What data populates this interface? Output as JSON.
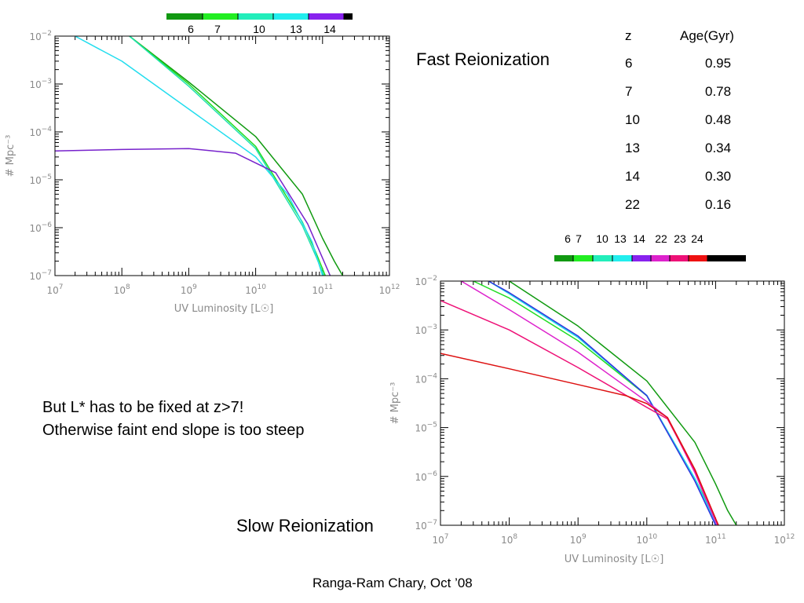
{
  "labels": {
    "fast": "Fast Reionization",
    "slow": "Slow Reionization",
    "note_line1": "But L* has to be fixed at z>7!",
    "note_line2": "Otherwise faint end slope is too steep",
    "credit": "Ranga-Ram Chary, Oct ’08"
  },
  "table": {
    "headers": [
      "z",
      "Age(Gyr)"
    ],
    "rows": [
      [
        "6",
        "0.95"
      ],
      [
        "7",
        "0.78"
      ],
      [
        "10",
        "0.48"
      ],
      [
        "13",
        "0.34"
      ],
      [
        "14",
        "0.30"
      ],
      [
        "22",
        "0.16"
      ]
    ]
  },
  "chart_data": [
    {
      "type": "line",
      "id": "fast",
      "xlabel": "UV Luminosity [L☉]",
      "ylabel": "# Mpc⁻³",
      "x_scale": "log",
      "y_scale": "log",
      "xlim": [
        10000000.0,
        1000000000000.0
      ],
      "ylim": [
        1e-07,
        0.01
      ],
      "x_ticks": [
        {
          "value": 10000000.0,
          "base": "10",
          "exp": "7"
        },
        {
          "value": 100000000.0,
          "base": "10",
          "exp": "8"
        },
        {
          "value": 1000000000.0,
          "base": "10",
          "exp": "9"
        },
        {
          "value": 10000000000.0,
          "base": "10",
          "exp": "10"
        },
        {
          "value": 100000000000.0,
          "base": "10",
          "exp": "11"
        },
        {
          "value": 1000000000000.0,
          "base": "10",
          "exp": "12"
        }
      ],
      "y_ticks": [
        {
          "value": 1e-07,
          "base": "10",
          "exp": "−7"
        },
        {
          "value": 1e-06,
          "base": "10",
          "exp": "−6"
        },
        {
          "value": 1e-05,
          "base": "10",
          "exp": "−5"
        },
        {
          "value": 0.0001,
          "base": "10",
          "exp": "−4"
        },
        {
          "value": 0.001,
          "base": "10",
          "exp": "−3"
        },
        {
          "value": 0.01,
          "base": "10",
          "exp": "−2"
        }
      ],
      "colorbar": {
        "colors": [
          "#119911",
          "#22ee22",
          "#22eebb",
          "#22eeee",
          "#8822ee",
          "#000000"
        ],
        "labels": [
          "6",
          "7",
          "10",
          "13",
          "14"
        ]
      },
      "series": [
        {
          "color": "#109a10",
          "x": [
            130000000.0,
            1000000000.0,
            10000000000.0,
            50000000000.0,
            100000000000.0,
            150000000000.0,
            200000000000.0
          ],
          "y": [
            0.01,
            0.0011,
            8e-05,
            5e-06,
            6e-07,
            2e-07,
            1e-07
          ]
        },
        {
          "color": "#22dd22",
          "x": [
            130000000.0,
            1000000000.0,
            10000000000.0,
            50000000000.0,
            80000000000.0,
            110000000000.0
          ],
          "y": [
            0.01,
            0.001,
            5e-05,
            1.3e-06,
            3e-07,
            1e-07
          ]
        },
        {
          "color": "#22e0b0",
          "x": [
            130000000.0,
            1000000000.0,
            10000000000.0,
            50000000000.0,
            80000000000.0,
            105000000000.0
          ],
          "y": [
            0.01,
            0.0009,
            4.5e-05,
            1.1e-06,
            2.5e-07,
            1e-07
          ]
        },
        {
          "color": "#22ddee",
          "x": [
            20000000.0,
            100000000.0,
            1000000000.0,
            10000000000.0,
            30000000000.0,
            70000000000.0,
            100000000000.0
          ],
          "y": [
            0.01,
            0.003,
            0.0003,
            3e-05,
            5e-06,
            5e-07,
            1e-07
          ]
        },
        {
          "color": "#7722cc",
          "x": [
            10000000.0,
            100000000.0,
            1000000000.0,
            5000000000.0,
            20000000000.0,
            60000000000.0,
            130000000000.0
          ],
          "y": [
            4e-05,
            4.3e-05,
            4.5e-05,
            3.6e-05,
            1.4e-05,
            1.2e-06,
            1e-07
          ]
        }
      ]
    },
    {
      "type": "line",
      "id": "slow",
      "xlabel": "UV Luminosity [L☉]",
      "ylabel": "# Mpc⁻³",
      "x_scale": "log",
      "y_scale": "log",
      "xlim": [
        10000000.0,
        1000000000000.0
      ],
      "ylim": [
        1e-07,
        0.01
      ],
      "x_ticks": [
        {
          "value": 10000000.0,
          "base": "10",
          "exp": "7"
        },
        {
          "value": 100000000.0,
          "base": "10",
          "exp": "8"
        },
        {
          "value": 1000000000.0,
          "base": "10",
          "exp": "9"
        },
        {
          "value": 10000000000.0,
          "base": "10",
          "exp": "10"
        },
        {
          "value": 100000000000.0,
          "base": "10",
          "exp": "11"
        },
        {
          "value": 1000000000000.0,
          "base": "10",
          "exp": "12"
        }
      ],
      "y_ticks": [
        {
          "value": 1e-07,
          "base": "10",
          "exp": "−7"
        },
        {
          "value": 1e-06,
          "base": "10",
          "exp": "−6"
        },
        {
          "value": 1e-05,
          "base": "10",
          "exp": "−5"
        },
        {
          "value": 0.0001,
          "base": "10",
          "exp": "−4"
        },
        {
          "value": 0.001,
          "base": "10",
          "exp": "−3"
        },
        {
          "value": 0.01,
          "base": "10",
          "exp": "−2"
        }
      ],
      "colorbar": {
        "colors": [
          "#119911",
          "#22ee22",
          "#22eebb",
          "#22eeee",
          "#8822ee",
          "#dd22cc",
          "#ee1177",
          "#ee1111",
          "#000000"
        ],
        "labels": [
          "6",
          "7",
          "10",
          "13",
          "14",
          "22",
          "23",
          "24"
        ]
      },
      "series": [
        {
          "color": "#109a10",
          "x": [
            100000000.0,
            1000000000.0,
            10000000000.0,
            50000000000.0,
            100000000000.0,
            150000000000.0,
            200000000000.0
          ],
          "y": [
            0.01,
            0.0012,
            9e-05,
            5e-06,
            7e-07,
            2e-07,
            1e-07
          ]
        },
        {
          "color": "#22dd22",
          "x": [
            30000000.0,
            100000000.0,
            1000000000.0,
            10000000000.0,
            50000000000.0,
            110000000000.0
          ],
          "y": [
            0.01,
            0.0045,
            0.0006,
            4.5e-05,
            9e-07,
            1e-07
          ]
        },
        {
          "color": "#22e0b0",
          "x": [
            50000000.0,
            100000000.0,
            1000000000.0,
            10000000000.0,
            50000000000.0,
            105000000000.0
          ],
          "y": [
            0.01,
            0.0055,
            0.0007,
            4.5e-05,
            9e-07,
            1e-07
          ]
        },
        {
          "color": "#22ddee",
          "x": [
            50000000.0,
            100000000.0,
            1000000000.0,
            10000000000.0,
            50000000000.0,
            102000000000.0
          ],
          "y": [
            0.01,
            0.0055,
            0.0007,
            4.6e-05,
            9e-07,
            1e-07
          ]
        },
        {
          "color": "#3333dd",
          "x": [
            50000000.0,
            100000000.0,
            1000000000.0,
            10000000000.0,
            50000000000.0,
            100000000000.0
          ],
          "y": [
            0.01,
            0.0058,
            0.00075,
            4.5e-05,
            8e-07,
            1e-07
          ]
        },
        {
          "color": "#dd22cc",
          "x": [
            20000000.0,
            100000000.0,
            1000000000.0,
            10000000000.0,
            20000000000.0,
            50000000000.0,
            105000000000.0
          ],
          "y": [
            0.01,
            0.0026,
            0.00035,
            3.4e-05,
            1.6e-05,
            1.2e-06,
            1e-07
          ]
        },
        {
          "color": "#ee1177",
          "x": [
            10000000.0,
            100000000.0,
            1000000000.0,
            10000000000.0,
            20000000000.0,
            50000000000.0,
            110000000000.0
          ],
          "y": [
            0.004,
            0.001,
            0.00017,
            2.6e-05,
            1.5e-05,
            1.3e-06,
            1e-07
          ]
        },
        {
          "color": "#dd1111",
          "x": [
            10000000.0,
            100000000.0,
            1000000000.0,
            5000000000.0,
            10000000000.0,
            20000000000.0,
            50000000000.0,
            110000000000.0
          ],
          "y": [
            0.00033,
            0.00016,
            7.6e-05,
            4.5e-05,
            3.1e-05,
            1.6e-05,
            1.4e-06,
            1e-07
          ]
        }
      ]
    }
  ]
}
